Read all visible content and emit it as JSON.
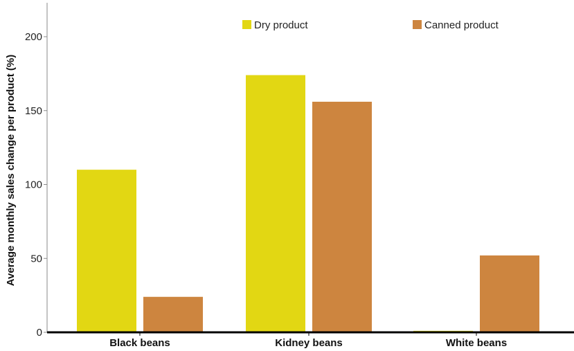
{
  "chart_data": {
    "type": "bar",
    "categories": [
      "Black beans",
      "Kidney beans",
      "White beans"
    ],
    "series": [
      {
        "name": "Dry product",
        "color": "#e2d713",
        "values": [
          110,
          174,
          1
        ]
      },
      {
        "name": "Canned product",
        "color": "#cd853f",
        "values": [
          24,
          156,
          52
        ]
      }
    ],
    "ylabel": "Average monthly sales change per product (%)",
    "xlabel": "",
    "ylim": [
      0,
      200
    ],
    "yticks": [
      0,
      50,
      100,
      150,
      200
    ],
    "grid": false,
    "legend_position": "top-right"
  }
}
